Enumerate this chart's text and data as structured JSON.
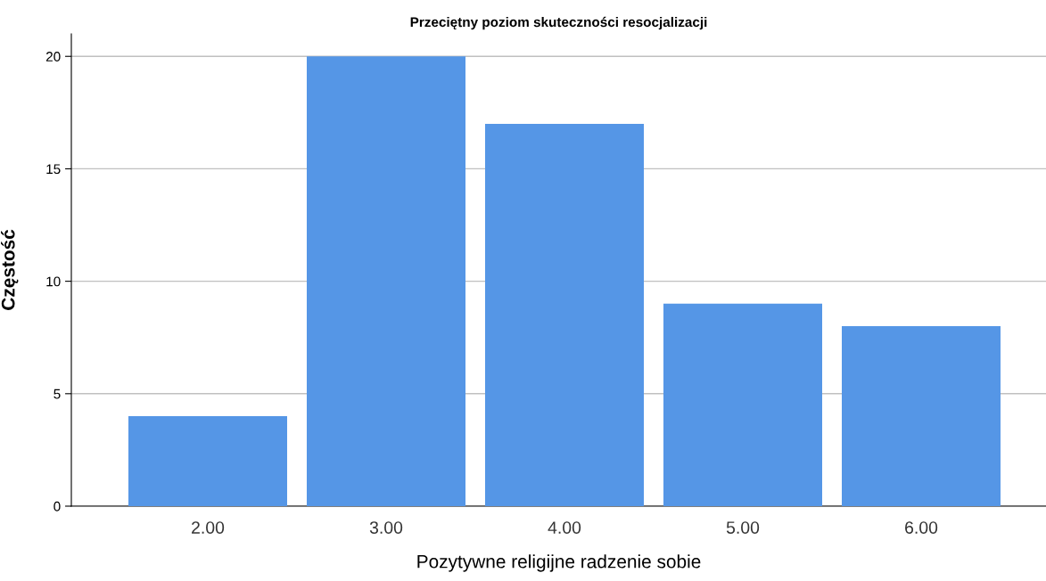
{
  "chart_data": {
    "type": "bar",
    "title": "Przeciętny poziom skuteczności resocjalizacji",
    "xlabel": "Pozytywne religijne radzenie sobie",
    "ylabel": "Częstość",
    "categories": [
      "2.00",
      "3.00",
      "4.00",
      "5.00",
      "6.00"
    ],
    "values": [
      4,
      20,
      17,
      9,
      8
    ],
    "color": "#5596e6",
    "ylim": [
      0,
      21
    ],
    "yticks": [
      0,
      5,
      10,
      15,
      20
    ],
    "grid": "y",
    "legend": false
  }
}
